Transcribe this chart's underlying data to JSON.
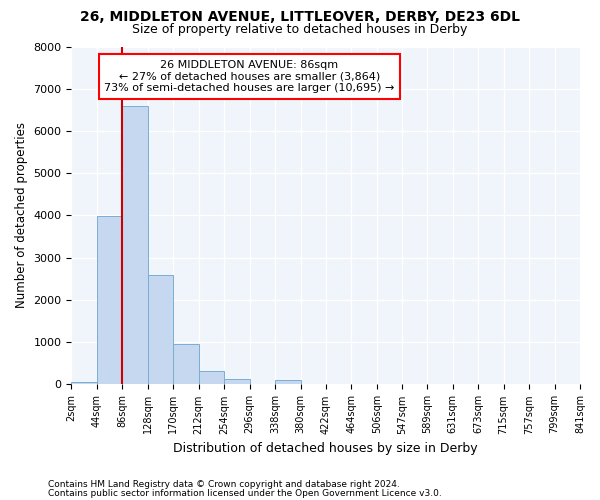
{
  "title1": "26, MIDDLETON AVENUE, LITTLEOVER, DERBY, DE23 6DL",
  "title2": "Size of property relative to detached houses in Derby",
  "xlabel": "Distribution of detached houses by size in Derby",
  "ylabel": "Number of detached properties",
  "footnote1": "Contains HM Land Registry data © Crown copyright and database right 2024.",
  "footnote2": "Contains public sector information licensed under the Open Government Licence v3.0.",
  "annotation_line1": "  26 MIDDLETON AVENUE: 86sqm  ",
  "annotation_line2": "← 27% of detached houses are smaller (3,864)",
  "annotation_line3": "73% of semi-detached houses are larger (10,695) →",
  "property_size": 86,
  "bar_edges": [
    2,
    44,
    86,
    128,
    170,
    212,
    254,
    296,
    338,
    380,
    422,
    464,
    506,
    547,
    589,
    631,
    673,
    715,
    757,
    799,
    841
  ],
  "bar_heights": [
    50,
    3980,
    6600,
    2600,
    950,
    330,
    130,
    10,
    100,
    0,
    0,
    0,
    0,
    0,
    0,
    0,
    0,
    0,
    0,
    0
  ],
  "bar_color": "#c5d8f0",
  "bar_edgecolor": "#7aadd4",
  "marker_color": "#cc0000",
  "background_color": "#f0f4fb",
  "grid_color": "#dce6f5",
  "ylim": [
    0,
    8000
  ],
  "yticks": [
    0,
    1000,
    2000,
    3000,
    4000,
    5000,
    6000,
    7000,
    8000
  ],
  "title_fontsize": 10,
  "subtitle_fontsize": 9
}
